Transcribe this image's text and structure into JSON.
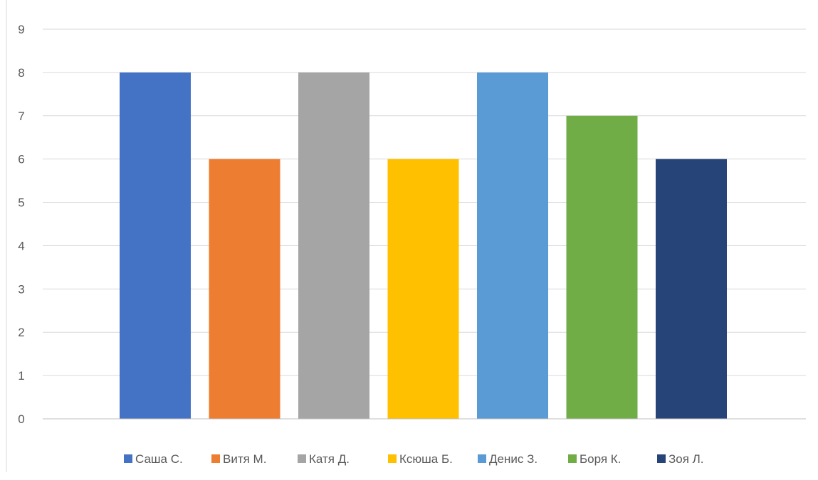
{
  "chart_data": {
    "type": "bar",
    "title": "",
    "xlabel": "",
    "ylabel": "",
    "ylim": [
      0,
      9
    ],
    "yticks": [
      0,
      1,
      2,
      3,
      4,
      5,
      6,
      7,
      8,
      9
    ],
    "grid": true,
    "legend_position": "bottom",
    "series": [
      {
        "name": "Саша С.",
        "value": 8,
        "color": "#4472C4"
      },
      {
        "name": "Витя М.",
        "value": 6,
        "color": "#ED7D31"
      },
      {
        "name": "Катя Д.",
        "value": 8,
        "color": "#A5A5A5"
      },
      {
        "name": "Ксюша Б.",
        "value": 6,
        "color": "#FFC000"
      },
      {
        "name": "Денис З.",
        "value": 8,
        "color": "#5B9BD5"
      },
      {
        "name": "Боря К.",
        "value": 7,
        "color": "#70AD47"
      },
      {
        "name": "Зоя Л.",
        "value": 6,
        "color": "#264478"
      }
    ]
  }
}
